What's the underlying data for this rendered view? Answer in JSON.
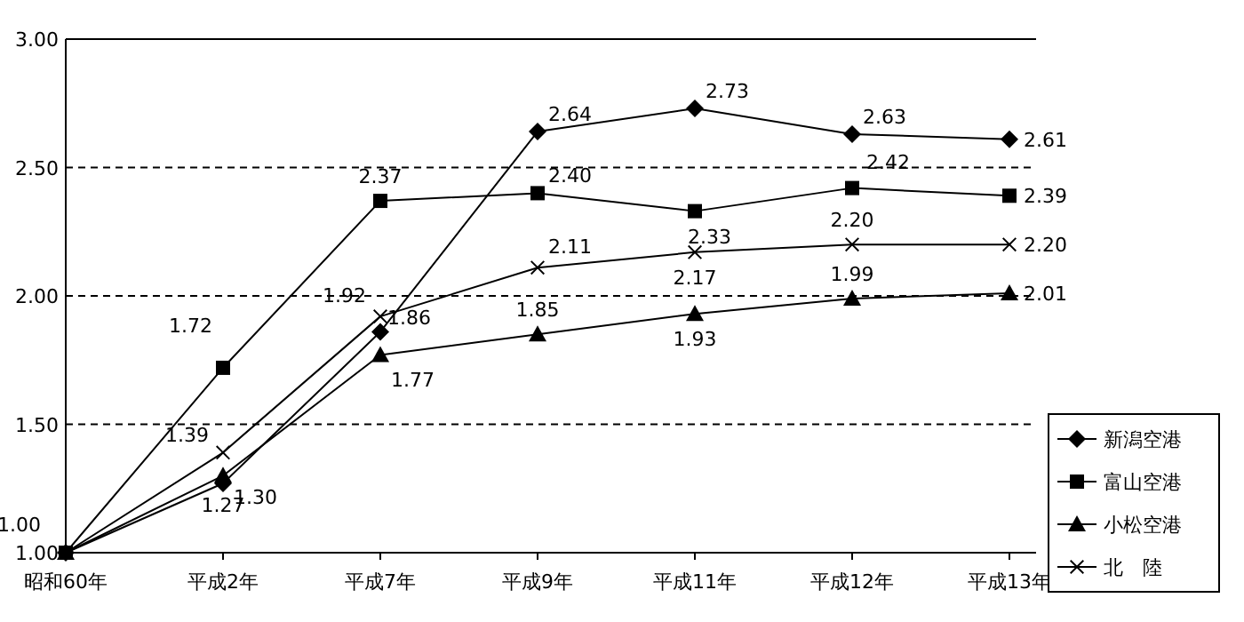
{
  "chart_data": {
    "type": "line",
    "categories": [
      "昭和60年",
      "平成2年",
      "平成7年",
      "平成9年",
      "平成11年",
      "平成12年",
      "平成13年"
    ],
    "ylim": [
      1,
      3
    ],
    "yticks": [
      {
        "value": 1,
        "label": "1.00"
      },
      {
        "value": 1.5,
        "label": "1.50"
      },
      {
        "value": 2,
        "label": "2.00"
      },
      {
        "value": 2.5,
        "label": "2.50"
      },
      {
        "value": 3,
        "label": "3.00"
      }
    ],
    "grid": "y",
    "legend": "right",
    "series": [
      {
        "name": "新潟空港",
        "color": "#000000",
        "marker": "diamond",
        "values": [
          1.0,
          1.27,
          1.86,
          2.64,
          2.73,
          2.63,
          2.61
        ],
        "value_labels": [
          "1.00",
          "1.27",
          "1.86",
          "2.64",
          "2.73",
          "2.63",
          "2.61"
        ]
      },
      {
        "name": "富山空港",
        "color": "#000000",
        "marker": "square",
        "values": [
          1.0,
          1.72,
          2.37,
          2.4,
          2.33,
          2.42,
          2.39
        ],
        "value_labels": [
          null,
          "1.72",
          "2.37",
          "2.40",
          "2.33",
          "2.42",
          "2.39"
        ]
      },
      {
        "name": "小松空港",
        "color": "#000000",
        "marker": "triangle",
        "values": [
          1.0,
          1.3,
          1.77,
          1.85,
          1.93,
          1.99,
          2.01
        ],
        "value_labels": [
          null,
          "1.30",
          "1.77",
          "1.85",
          "1.93",
          "1.99",
          "2.01"
        ]
      },
      {
        "name": "北　陸",
        "color": "#000000",
        "marker": "cross",
        "values": [
          1.0,
          1.39,
          1.92,
          2.11,
          2.17,
          2.2,
          2.2
        ],
        "value_labels": [
          null,
          "1.39",
          "1.92",
          "2.11",
          "2.17",
          "2.20",
          "2.20"
        ]
      }
    ]
  }
}
